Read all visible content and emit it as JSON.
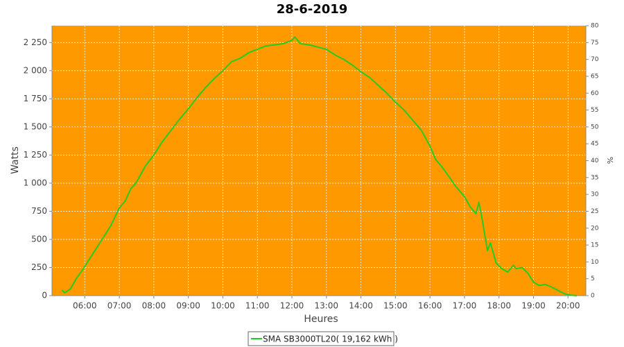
{
  "chart_data": {
    "type": "line",
    "title": "28-6-2019",
    "xlabel": "Heures",
    "ylabel": "Watts",
    "y2label": "%",
    "x": [
      "05:20",
      "05:25",
      "05:35",
      "05:45",
      "05:55",
      "06:05",
      "06:15",
      "06:30",
      "06:45",
      "07:00",
      "07:10",
      "07:20",
      "07:30",
      "07:45",
      "08:00",
      "08:15",
      "08:30",
      "08:45",
      "09:00",
      "09:15",
      "09:30",
      "09:45",
      "10:00",
      "10:15",
      "10:30",
      "10:45",
      "11:00",
      "11:15",
      "11:30",
      "11:45",
      "12:00",
      "12:05",
      "12:15",
      "12:30",
      "12:45",
      "13:00",
      "13:15",
      "13:30",
      "13:45",
      "14:00",
      "14:15",
      "14:30",
      "14:45",
      "15:00",
      "15:15",
      "15:30",
      "15:45",
      "16:00",
      "16:10",
      "16:20",
      "16:30",
      "16:45",
      "17:00",
      "17:10",
      "17:20",
      "17:25",
      "17:30",
      "17:40",
      "17:45",
      "17:55",
      "18:05",
      "18:15",
      "18:25",
      "18:30",
      "18:40",
      "18:50",
      "19:00",
      "19:10",
      "19:20",
      "19:30",
      "19:45",
      "19:55",
      "20:05",
      "20:15"
    ],
    "series": [
      {
        "name": "SMA SB3000TL20( 19,162 kWh )",
        "color": "#22cc22",
        "values": [
          50,
          25,
          60,
          150,
          220,
          300,
          380,
          500,
          620,
          780,
          840,
          950,
          1010,
          1150,
          1250,
          1370,
          1470,
          1570,
          1660,
          1760,
          1850,
          1930,
          2000,
          2080,
          2110,
          2160,
          2190,
          2220,
          2230,
          2240,
          2270,
          2300,
          2240,
          2230,
          2210,
          2190,
          2140,
          2100,
          2050,
          1990,
          1940,
          1870,
          1800,
          1720,
          1650,
          1560,
          1470,
          1330,
          1210,
          1150,
          1080,
          970,
          880,
          790,
          730,
          830,
          700,
          400,
          470,
          290,
          240,
          210,
          270,
          240,
          250,
          200,
          120,
          90,
          100,
          80,
          40,
          15,
          5,
          0
        ]
      }
    ],
    "xlim": [
      "05:03",
      "20:31"
    ],
    "xticks": [
      "06:00",
      "07:00",
      "08:00",
      "09:00",
      "10:00",
      "11:00",
      "12:00",
      "13:00",
      "14:00",
      "15:00",
      "16:00",
      "17:00",
      "18:00",
      "19:00",
      "20:00"
    ],
    "ylim": [
      0,
      2400
    ],
    "yticks": [
      0,
      250,
      500,
      750,
      {
        "value": 1000,
        "label": "1 000"
      },
      {
        "value": 1250,
        "label": "1 250"
      },
      {
        "value": 1500,
        "label": "1 500"
      },
      {
        "value": 1750,
        "label": "1 750"
      },
      {
        "value": 2000,
        "label": "2 000"
      },
      {
        "value": 2250,
        "label": "2 250"
      }
    ],
    "y2lim": [
      0,
      80
    ],
    "y2ticks": [
      0,
      5,
      10,
      15,
      20,
      25,
      30,
      35,
      40,
      45,
      50,
      55,
      60,
      65,
      70,
      75,
      80
    ],
    "grid": true,
    "legend": "bottom",
    "background": "#ff9900"
  }
}
